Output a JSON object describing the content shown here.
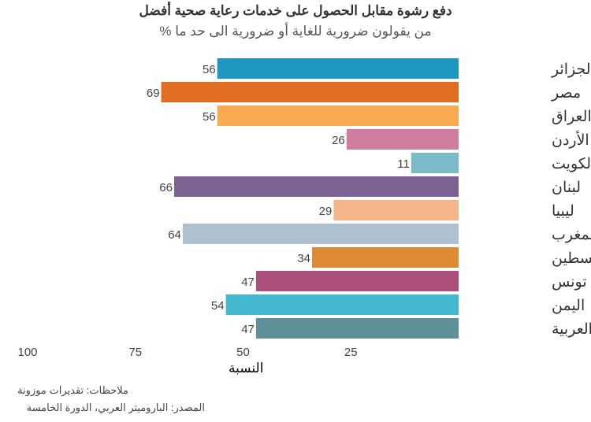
{
  "chart_data": {
    "type": "bar",
    "orientation": "horizontal",
    "title": "دفع رشوة مقابل الحصول على خدمات رعاية صحية أفضل",
    "subtitle": "% من يقولون ضرورية للغاية أو ضرورية الى حد ما",
    "xlabel": "النسبة",
    "xlim": [
      0,
      100
    ],
    "x_reversed": true,
    "xticks": [
      100,
      75,
      50,
      25
    ],
    "grid": false,
    "categories": [
      "الجزائر",
      "مصر",
      "العراق",
      "الأردن",
      "الكويت",
      "لبنان",
      "ليبيا",
      "المغرب",
      "فلسطين",
      "تونس",
      "اليمن",
      "الدول العربية"
    ],
    "values": [
      56,
      69,
      56,
      26,
      11,
      66,
      29,
      64,
      34,
      47,
      54,
      47
    ],
    "colors": [
      "#1f97c0",
      "#e06e21",
      "#f9a94f",
      "#d07da0",
      "#7bbac9",
      "#7b6491",
      "#f5b48a",
      "#afc1d0",
      "#dc8a34",
      "#ab4f7c",
      "#44b8cf",
      "#5f8f97"
    ],
    "note": "ملاحظات: تقديرات موزونة",
    "source": "المصدر: البارومیتر العربي، الدورة الخامسة"
  }
}
